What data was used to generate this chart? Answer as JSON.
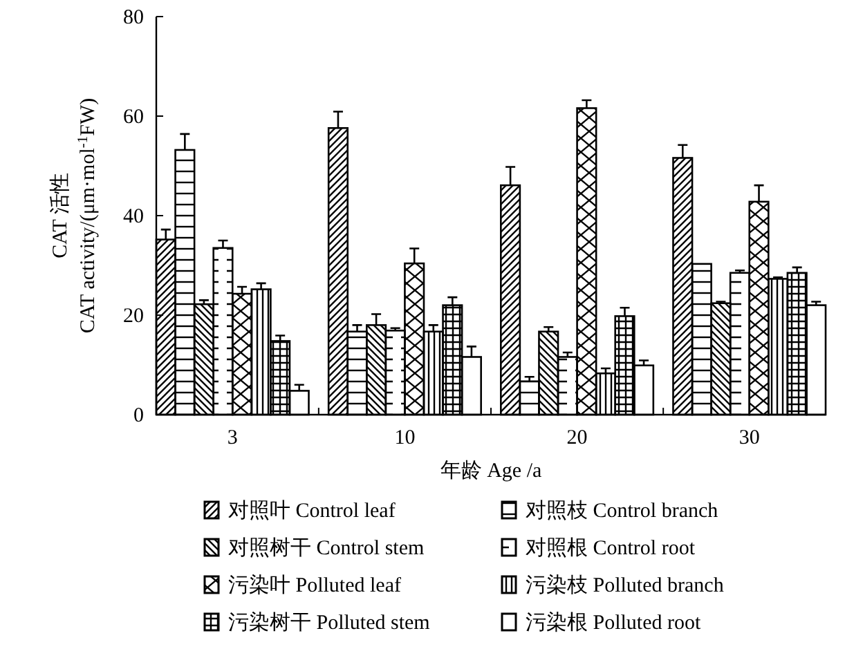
{
  "chart_data": {
    "type": "bar",
    "xlabel": "年龄 Age /a",
    "ylabel": "CAT 活性\nCAT activity/(μm·mol$^{-1}$FW)",
    "categories": [
      "3",
      "10",
      "20",
      "30"
    ],
    "ylim": [
      0,
      80
    ],
    "yticks": [
      0,
      20,
      40,
      60,
      80
    ],
    "legend": "bottom",
    "series": [
      {
        "name": "对照叶 Control leaf",
        "color": "#000000",
        "values": [
          35.2,
          57.6,
          46.1,
          51.6
        ],
        "errors": [
          2,
          3.3,
          3.7,
          2.6
        ]
      },
      {
        "name": "对照枝 Control branch",
        "color": "#000000",
        "values": [
          53.2,
          16.7,
          6.7,
          30.3
        ],
        "errors": [
          3.2,
          1.3,
          0.9,
          null
        ]
      },
      {
        "name": "对照树干 Control stem",
        "color": "#000000",
        "values": [
          22.2,
          18,
          16.7,
          22.4
        ],
        "errors": [
          0.8,
          2.2,
          0.9,
          0.3
        ]
      },
      {
        "name": "对照根 Control root",
        "color": "#000000",
        "values": [
          33.5,
          16.9,
          11.6,
          28.5
        ],
        "errors": [
          1.5,
          0.5,
          0.9,
          0.5
        ]
      },
      {
        "name": "污染叶 Polluted leaf",
        "color": "#000000",
        "values": [
          24.3,
          30.4,
          61.6,
          42.8
        ],
        "errors": [
          1.4,
          3,
          1.6,
          3.3
        ]
      },
      {
        "name": "污染枝 Polluted branch",
        "color": "#000000",
        "values": [
          25.2,
          16.7,
          8.3,
          27.3
        ],
        "errors": [
          1.2,
          1.3,
          1,
          0.3
        ]
      },
      {
        "name": "污染树干 Polluted stem",
        "color": "#000000",
        "values": [
          14.8,
          22,
          19.8,
          28.5
        ],
        "errors": [
          1.1,
          1.6,
          1.7,
          1.1
        ]
      },
      {
        "name": "污染根 Polluted root",
        "color": "#000000",
        "values": [
          4.8,
          11.6,
          9.9,
          22
        ],
        "errors": [
          1.2,
          2.1,
          1,
          0.7
        ]
      }
    ]
  }
}
